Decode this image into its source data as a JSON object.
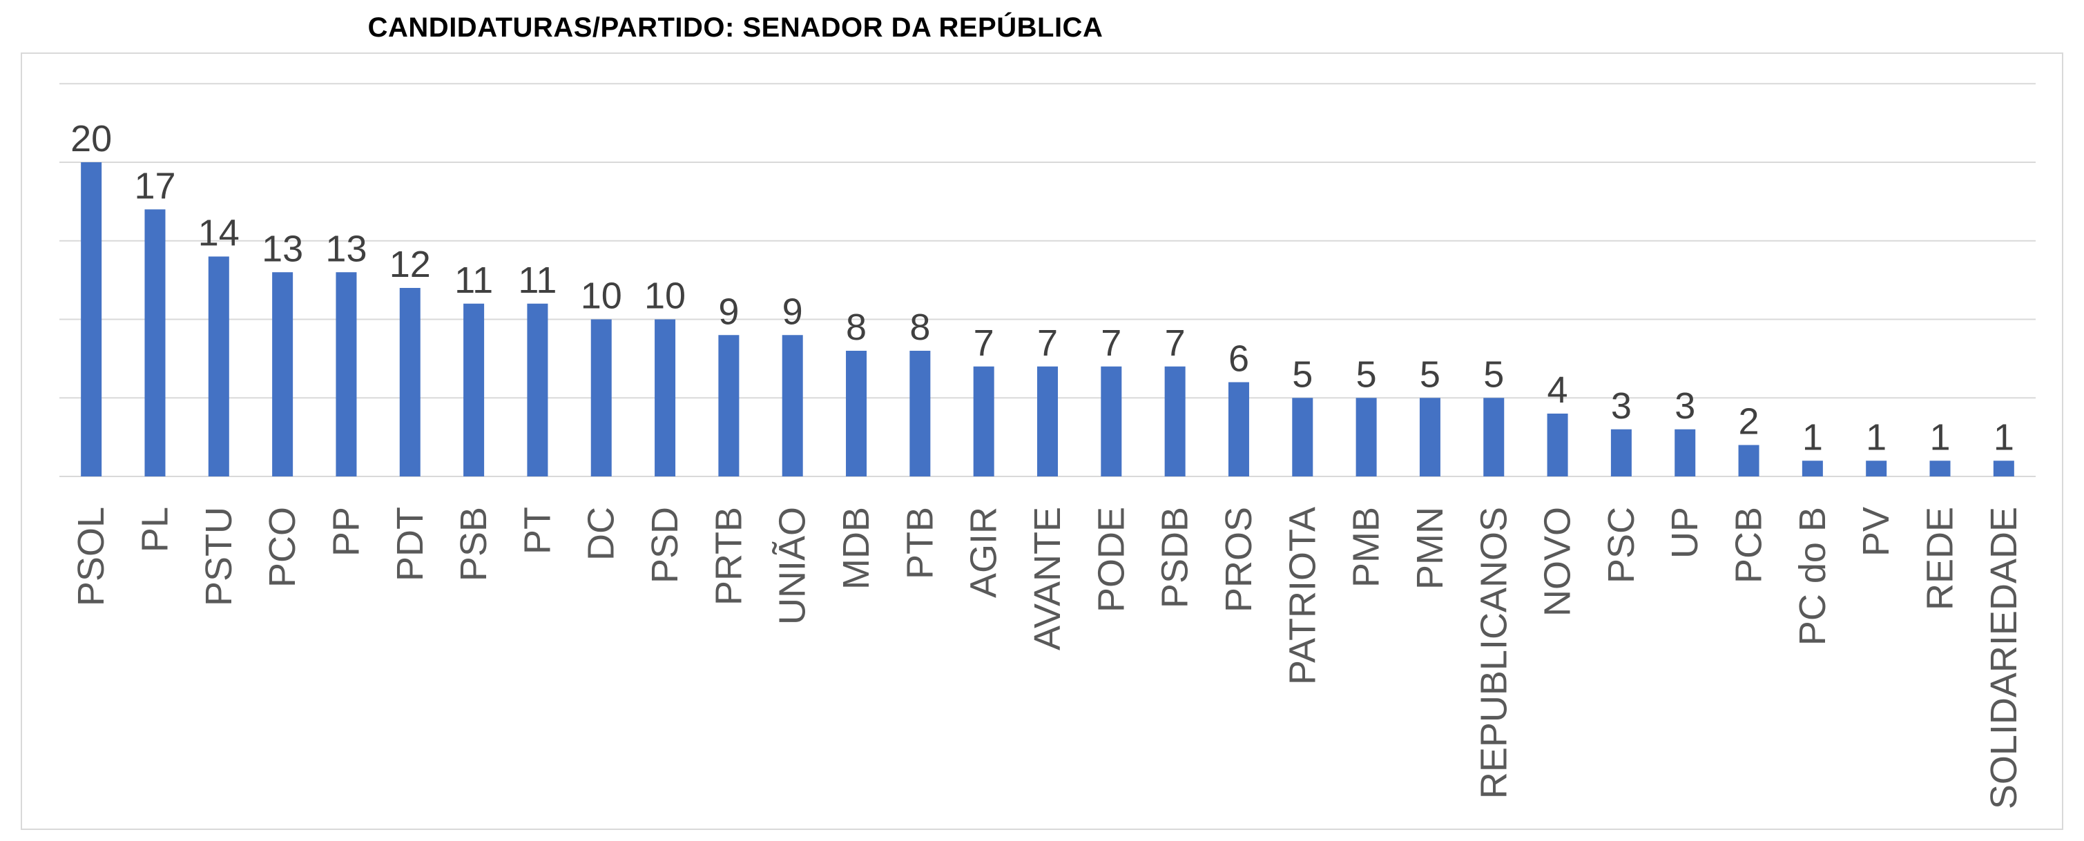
{
  "chart_data": {
    "type": "bar",
    "title": "CANDIDATURAS/PARTIDO: SENADOR DA REPÚBLICA",
    "xlabel": "",
    "ylabel": "",
    "ylim": [
      0,
      25
    ],
    "grid": true,
    "legend": "none",
    "bar_color": "#4472C4",
    "categories": [
      "PSOL",
      "PL",
      "PSTU",
      "PCO",
      "PP",
      "PDT",
      "PSB",
      "PT",
      "DC",
      "PSD",
      "PRTB",
      "UNIÃO",
      "MDB",
      "PTB",
      "AGIR",
      "AVANTE",
      "PODE",
      "PSDB",
      "PROS",
      "PATRIOTA",
      "PMB",
      "PMN",
      "REPUBLICANOS",
      "NOVO",
      "PSC",
      "UP",
      "PCB",
      "PC do B",
      "PV",
      "REDE",
      "SOLIDARIEDADE"
    ],
    "values": [
      20,
      17,
      14,
      13,
      13,
      12,
      11,
      11,
      10,
      10,
      9,
      9,
      8,
      8,
      7,
      7,
      7,
      7,
      6,
      5,
      5,
      5,
      5,
      4,
      3,
      3,
      2,
      1,
      1,
      1,
      1
    ]
  }
}
